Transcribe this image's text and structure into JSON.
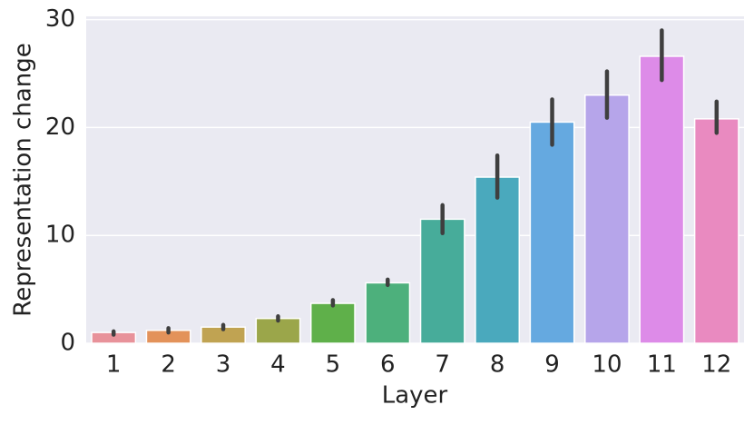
{
  "chart_data": {
    "type": "bar",
    "xlabel": "Layer",
    "ylabel": "Representation change",
    "categories": [
      "1",
      "2",
      "3",
      "4",
      "5",
      "6",
      "7",
      "8",
      "9",
      "10",
      "11",
      "12"
    ],
    "values": [
      1.0,
      1.2,
      1.5,
      2.3,
      3.7,
      5.6,
      11.5,
      15.4,
      20.5,
      23.0,
      26.6,
      20.8
    ],
    "ci_low": [
      0.8,
      1.0,
      1.3,
      2.1,
      3.5,
      5.4,
      10.2,
      13.5,
      18.4,
      20.9,
      24.4,
      19.5
    ],
    "ci_high": [
      1.1,
      1.4,
      1.7,
      2.5,
      4.0,
      5.9,
      12.8,
      17.4,
      22.6,
      25.2,
      29.0,
      22.4
    ],
    "colors": [
      "#e8929a",
      "#e3925a",
      "#c0a352",
      "#9ba64a",
      "#5fb04a",
      "#4db07c",
      "#47ac9a",
      "#4aa9bd",
      "#65a9e0",
      "#b6a5ea",
      "#dd8be8",
      "#e98ac0"
    ],
    "ylim": [
      0,
      30.3
    ],
    "yticks": [
      0,
      10,
      20,
      30
    ],
    "grid": true
  }
}
